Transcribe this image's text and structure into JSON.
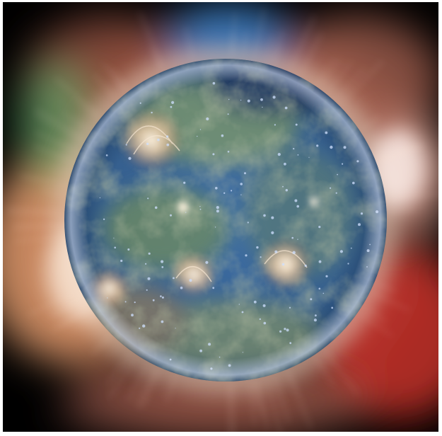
{
  "image": {
    "subject_icon": "sun-corona-icon",
    "colors": {
      "frame": "#ffffff",
      "space": "#000000",
      "disk_core": "#3e6fa8",
      "disk_edge": "#1e3d63",
      "disk_haze": "#7f9a6a",
      "corona_warm": "#e8a070",
      "corona_red": "#c8322a",
      "corona_green": "#58b070",
      "corona_blue": "#3f8fe0",
      "active_region": "#fff2dc"
    }
  }
}
